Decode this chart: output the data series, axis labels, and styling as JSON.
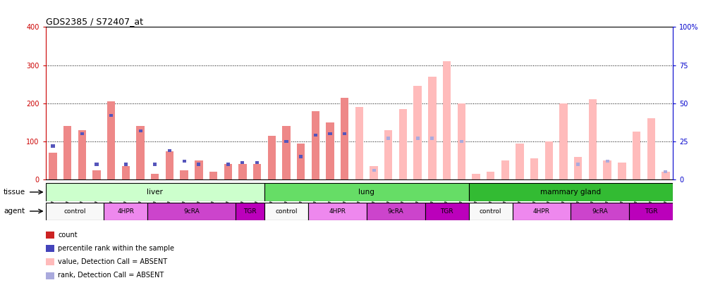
{
  "title": "GDS2385 / S72407_at",
  "samples": [
    "GSM89873",
    "GSM89875",
    "GSM89878",
    "GSM89881",
    "GSM89841",
    "GSM89843",
    "GSM89846",
    "GSM89870",
    "GSM89858",
    "GSM89861",
    "GSM89664",
    "GSM89867",
    "GSM89849",
    "GSM89852",
    "GSM89855",
    "GSM89676",
    "GSM89679",
    "GSM90168",
    "GSM89642",
    "GSM89644",
    "GSM89847",
    "GSM89871",
    "GSM89859",
    "GSM89862",
    "GSM89665",
    "GSM89868",
    "GSM89850",
    "GSM89953",
    "GSM89856",
    "GSM89974",
    "GSM89977",
    "GSM89980",
    "GSM90169",
    "GSM89945",
    "GSM89648",
    "GSM89872",
    "GSM89860",
    "GSM89663",
    "GSM89666",
    "GSM89869",
    "GSM89851",
    "GSM89654",
    "GSM89857"
  ],
  "count_values": [
    70,
    140,
    130,
    25,
    205,
    35,
    140,
    15,
    75,
    25,
    50,
    20,
    40,
    40,
    40,
    115,
    140,
    95,
    180,
    150,
    215,
    190,
    35,
    130,
    185,
    245,
    270,
    310,
    200,
    15,
    20,
    50,
    95,
    55,
    100,
    200,
    60,
    210,
    50,
    45,
    125,
    160,
    20
  ],
  "rank_values": [
    22,
    0,
    30,
    10,
    42,
    10,
    32,
    10,
    19,
    12,
    10,
    0,
    10,
    11,
    11,
    0,
    25,
    15,
    29,
    30,
    30,
    0,
    6,
    27,
    0,
    27,
    27,
    0,
    25,
    0,
    0,
    0,
    0,
    0,
    0,
    0,
    10,
    0,
    12,
    0,
    0,
    0,
    5
  ],
  "is_absent": [
    false,
    false,
    false,
    false,
    false,
    false,
    false,
    false,
    false,
    false,
    false,
    false,
    false,
    false,
    false,
    false,
    false,
    false,
    false,
    false,
    false,
    true,
    true,
    true,
    true,
    true,
    true,
    true,
    true,
    true,
    true,
    true,
    true,
    true,
    true,
    true,
    true,
    true,
    true,
    true,
    true,
    true,
    true
  ],
  "tissues": [
    {
      "label": "liver",
      "start": 0,
      "end": 15,
      "color": "#ccffcc"
    },
    {
      "label": "lung",
      "start": 15,
      "end": 29,
      "color": "#66dd66"
    },
    {
      "label": "mammary gland",
      "start": 29,
      "end": 43,
      "color": "#33bb33"
    }
  ],
  "agents": [
    {
      "label": "control",
      "start": 0,
      "end": 4,
      "color": "#ffffff"
    },
    {
      "label": "4HPR",
      "start": 4,
      "end": 7,
      "color": "#ee88ee"
    },
    {
      "label": "9cRA",
      "start": 7,
      "end": 13,
      "color": "#cc44cc"
    },
    {
      "label": "TGR",
      "start": 13,
      "end": 15,
      "color": "#bb00bb"
    },
    {
      "label": "control",
      "start": 15,
      "end": 18,
      "color": "#ffffff"
    },
    {
      "label": "4HPR",
      "start": 18,
      "end": 22,
      "color": "#ee88ee"
    },
    {
      "label": "9cRA",
      "start": 22,
      "end": 26,
      "color": "#cc44cc"
    },
    {
      "label": "TGR",
      "start": 26,
      "end": 29,
      "color": "#bb00bb"
    },
    {
      "label": "control",
      "start": 29,
      "end": 32,
      "color": "#ffffff"
    },
    {
      "label": "4HPR",
      "start": 32,
      "end": 36,
      "color": "#ee88ee"
    },
    {
      "label": "9cRA",
      "start": 36,
      "end": 40,
      "color": "#cc44cc"
    },
    {
      "label": "TGR",
      "start": 40,
      "end": 43,
      "color": "#bb00bb"
    }
  ],
  "ylim_left": [
    0,
    400
  ],
  "yticks_left": [
    0,
    100,
    200,
    300,
    400
  ],
  "yticks_right": [
    0,
    25,
    50,
    75,
    100
  ],
  "bar_width": 0.55,
  "color_count_present": "#ee8888",
  "color_rank_present": "#5555bb",
  "color_count_absent": "#ffbbbb",
  "color_rank_absent": "#aaaadd"
}
